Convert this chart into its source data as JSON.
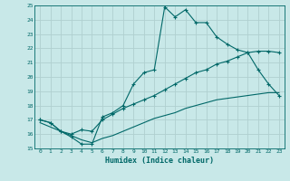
{
  "xlabel": "Humidex (Indice chaleur)",
  "bg_color": "#c8e8e8",
  "grid_color": "#b0d0d0",
  "line_color": "#006868",
  "xlim": [
    -0.5,
    23.5
  ],
  "ylim": [
    15,
    25
  ],
  "xticks": [
    0,
    1,
    2,
    3,
    4,
    5,
    6,
    7,
    8,
    9,
    10,
    11,
    12,
    13,
    14,
    15,
    16,
    17,
    18,
    19,
    20,
    21,
    22,
    23
  ],
  "yticks": [
    15,
    16,
    17,
    18,
    19,
    20,
    21,
    22,
    23,
    24,
    25
  ],
  "line1_x": [
    0,
    1,
    2,
    3,
    4,
    5,
    6,
    7,
    8,
    9,
    10,
    11,
    12,
    13,
    14,
    15,
    16,
    17,
    18,
    19,
    20,
    21,
    22,
    23
  ],
  "line1_y": [
    17.0,
    16.8,
    16.2,
    15.8,
    15.3,
    15.3,
    17.2,
    17.5,
    18.0,
    19.5,
    20.3,
    20.5,
    24.9,
    24.2,
    24.7,
    23.8,
    23.8,
    22.8,
    22.3,
    21.9,
    21.7,
    20.5,
    19.5,
    18.7
  ],
  "line2_x": [
    0,
    1,
    2,
    3,
    4,
    5,
    6,
    7,
    8,
    9,
    10,
    11,
    12,
    13,
    14,
    15,
    16,
    17,
    18,
    19,
    20,
    21,
    22,
    23
  ],
  "line2_y": [
    17.0,
    16.8,
    16.2,
    16.0,
    16.3,
    16.2,
    17.0,
    17.4,
    17.8,
    18.1,
    18.4,
    18.7,
    19.1,
    19.5,
    19.9,
    20.3,
    20.5,
    20.9,
    21.1,
    21.4,
    21.7,
    21.8,
    21.8,
    21.7
  ],
  "line3_x": [
    0,
    1,
    2,
    3,
    4,
    5,
    6,
    7,
    8,
    9,
    10,
    11,
    12,
    13,
    14,
    15,
    16,
    17,
    18,
    19,
    20,
    21,
    22,
    23
  ],
  "line3_y": [
    16.8,
    16.5,
    16.2,
    15.9,
    15.6,
    15.4,
    15.7,
    15.9,
    16.2,
    16.5,
    16.8,
    17.1,
    17.3,
    17.5,
    17.8,
    18.0,
    18.2,
    18.4,
    18.5,
    18.6,
    18.7,
    18.8,
    18.9,
    18.9
  ]
}
